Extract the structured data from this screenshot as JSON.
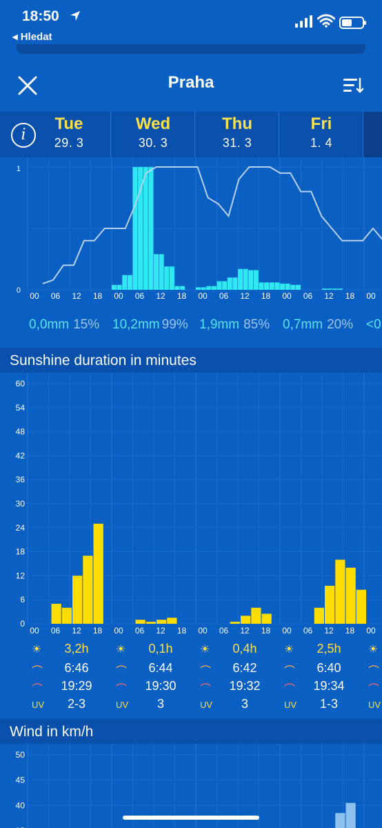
{
  "status_bar": {
    "time": "18:50",
    "back_label": "◂ Hledat"
  },
  "nav": {
    "title": "Praha"
  },
  "days": [
    {
      "name": "Tue",
      "date": "29. 3",
      "precip_mm": "0,0mm",
      "precip_pct": "15%",
      "sunshine": "3,2h",
      "sunrise": "6:46",
      "sunset": "19:29",
      "uv": "2-3"
    },
    {
      "name": "Wed",
      "date": "30. 3",
      "precip_mm": "10,2mm",
      "precip_pct": "99%",
      "sunshine": "0,1h",
      "sunrise": "6:44",
      "sunset": "19:30",
      "uv": "3"
    },
    {
      "name": "Thu",
      "date": "31. 3",
      "precip_mm": "1,9mm",
      "precip_pct": "85%",
      "sunshine": "0,4h",
      "sunrise": "6:42",
      "sunset": "19:32",
      "uv": "3"
    },
    {
      "name": "Fri",
      "date": "1. 4",
      "precip_mm": "0,7mm",
      "precip_pct": "20%",
      "sunshine": "2,5h",
      "sunrise": "6:40",
      "sunset": "19:34",
      "uv": "1-3"
    }
  ],
  "next_day_partial": {
    "precip_mm": "<0",
    "uv": "UV"
  },
  "uv_label": "UV",
  "hour_ticks": [
    "00",
    "06",
    "12",
    "18"
  ],
  "sections": {
    "sunshine_title": "Sunshine duration in minutes",
    "wind_title": "Wind in km/h"
  },
  "colors": {
    "background": "#0a5fc2",
    "header": "#0850ab",
    "precip_bar": "#2fe8f2",
    "sun_bar": "#ffdd00",
    "day_name": "#ffe14a",
    "probability_line": "#b9d2ee"
  },
  "chart_data": [
    {
      "type": "bar",
      "title": "",
      "xlabel": "",
      "ylabel": "",
      "ylim": [
        0,
        1
      ],
      "yticks": [
        0,
        1
      ],
      "x_unit": "3-hour blocks from Tue 00",
      "series": [
        {
          "values": [
            0,
            0,
            0,
            0,
            0,
            0,
            0,
            0,
            0,
            0,
            0,
            0,
            0,
            0,
            0,
            0,
            0.04,
            0.04,
            0.12,
            0.12,
            1,
            1,
            1,
            1,
            0.29,
            0.29,
            0.19,
            0.19,
            0.03,
            0.03,
            0,
            0,
            0.02,
            0.02,
            0.03,
            0.03,
            0.07,
            0.07,
            0.1,
            0.1,
            0.17,
            0.17,
            0.16,
            0.16,
            0.06,
            0.06,
            0.06,
            0.06,
            0.05,
            0.05,
            0.04,
            0.04,
            0,
            0,
            0,
            0,
            0.01,
            0.01,
            0.01,
            0.01,
            0,
            0,
            0,
            0
          ]
        },
        {
          "values": [
            0.05,
            0.08,
            0.2,
            0.2,
            0.4,
            0.4,
            0.5,
            0.5,
            0.5,
            0.7,
            0.95,
            1,
            1,
            1,
            1,
            1,
            0.75,
            0.7,
            0.6,
            0.9,
            1,
            1,
            1,
            0.95,
            0.95,
            0.8,
            0.8,
            0.6,
            0.5,
            0.4,
            0.4,
            0.4,
            0.5,
            0.4
          ]
        }
      ]
    },
    {
      "type": "bar",
      "title": "Sunshine duration in minutes",
      "ylim": [
        0,
        60
      ],
      "yticks": [
        0,
        6,
        12,
        18,
        24,
        30,
        36,
        42,
        48,
        54,
        60
      ],
      "series": [
        {
          "values": [
            0,
            0,
            5,
            4,
            12,
            17,
            25,
            0,
            0,
            0,
            1,
            0.5,
            1,
            1.5,
            0,
            0,
            0,
            0,
            0,
            0.5,
            2,
            4,
            2.5,
            0,
            0,
            0,
            0,
            4,
            9.5,
            16,
            14,
            8.5,
            0
          ]
        }
      ]
    },
    {
      "type": "bar",
      "title": "Wind in km/h",
      "ylim": [
        35,
        50
      ],
      "yticks": [
        35,
        40,
        45,
        50
      ],
      "series": [
        {
          "values": [
            0,
            0,
            0,
            0,
            0,
            0,
            0,
            0,
            0,
            0,
            0,
            0,
            0,
            0,
            0,
            0,
            0,
            0,
            0,
            0,
            0,
            0,
            0,
            0,
            0,
            0,
            0,
            0,
            0,
            38.5,
            40.5,
            0,
            0
          ]
        }
      ]
    }
  ]
}
